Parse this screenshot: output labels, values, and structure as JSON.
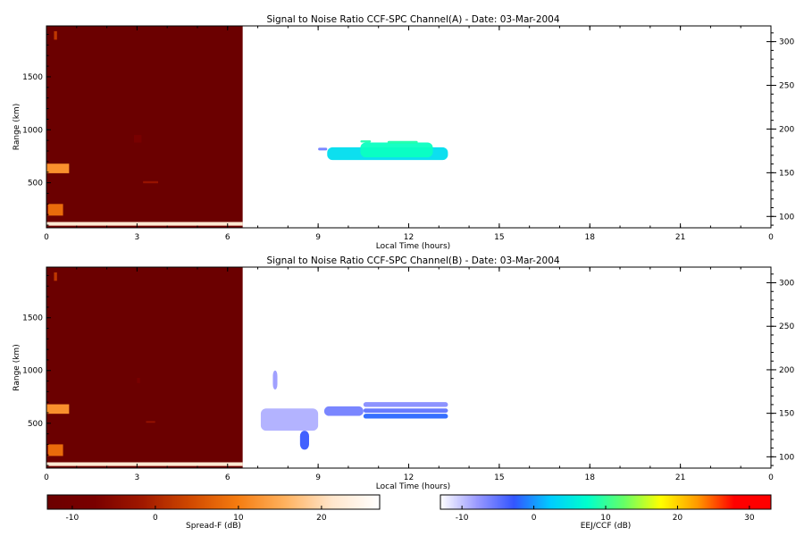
{
  "chart_data": [
    {
      "type": "heatmap",
      "title": "Signal to Noise Ratio CCF-SPC Channel(A) - Date: 03-Mar-2004",
      "xlabel": "Local Time (hours)",
      "ylabel": "Range (km)",
      "xlim": [
        0,
        24
      ],
      "ylim": [
        75,
        1980
      ],
      "xticks": [
        "0",
        "3",
        "6",
        "9",
        "12",
        "15",
        "18",
        "21",
        "0"
      ],
      "yticks": [
        500,
        1000,
        1500
      ],
      "y2lim": [
        87,
        318
      ],
      "y2ticks": [
        100,
        150,
        200,
        250,
        300
      ],
      "spreadf_block": {
        "x": [
          0,
          6.5
        ],
        "y": [
          75,
          1980
        ],
        "dB": -13
      },
      "spreadf_features": [
        {
          "x": [
            0.0,
            6.5
          ],
          "y": [
            95,
            130
          ],
          "dB": 22
        },
        {
          "x": [
            0.0,
            0.75
          ],
          "y": [
            590,
            680
          ],
          "dB": 12
        },
        {
          "x": [
            0.05,
            0.55
          ],
          "y": [
            190,
            300
          ],
          "dB": 8
        },
        {
          "x": [
            0.25,
            0.35
          ],
          "y": [
            1850,
            1930
          ],
          "dB": 2
        },
        {
          "x": [
            3.2,
            3.7
          ],
          "y": [
            495,
            515
          ],
          "dB": -3
        },
        {
          "x": [
            2.9,
            3.15
          ],
          "y": [
            880,
            950
          ],
          "dB": -8
        }
      ],
      "eej_blobs": [
        {
          "x": [
            9.3,
            13.3
          ],
          "y": [
            715,
            835
          ],
          "dB": 4
        },
        {
          "x": [
            10.4,
            12.8
          ],
          "y": [
            740,
            880
          ],
          "dB": 8
        },
        {
          "x": [
            9.0,
            9.3
          ],
          "y": [
            805,
            830
          ],
          "dB": -6
        },
        {
          "x": [
            10.4,
            10.75
          ],
          "y": [
            880,
            900
          ],
          "dB": 9
        },
        {
          "x": [
            11.3,
            12.3
          ],
          "y": [
            870,
            895
          ],
          "dB": 9
        }
      ]
    },
    {
      "type": "heatmap",
      "title": "Signal to Noise Ratio CCF-SPC Channel(B) - Date: 03-Mar-2004",
      "xlabel": "Local Time (hours)",
      "ylabel": "Range (km)",
      "xlim": [
        0,
        24
      ],
      "ylim": [
        75,
        1980
      ],
      "xticks": [
        "0",
        "3",
        "6",
        "9",
        "12",
        "15",
        "18",
        "21",
        "0"
      ],
      "yticks": [
        500,
        1000,
        1500
      ],
      "y2lim": [
        87,
        318
      ],
      "y2ticks": [
        100,
        150,
        200,
        250,
        300
      ],
      "spreadf_block": {
        "x": [
          0,
          6.5
        ],
        "y": [
          75,
          1980
        ],
        "dB": -13
      },
      "spreadf_features": [
        {
          "x": [
            0.0,
            6.5
          ],
          "y": [
            95,
            130
          ],
          "dB": 22
        },
        {
          "x": [
            0.0,
            0.75
          ],
          "y": [
            590,
            680
          ],
          "dB": 12
        },
        {
          "x": [
            0.05,
            0.55
          ],
          "y": [
            190,
            300
          ],
          "dB": 8
        },
        {
          "x": [
            0.25,
            0.35
          ],
          "y": [
            1850,
            1930
          ],
          "dB": 2
        },
        {
          "x": [
            3.3,
            3.6
          ],
          "y": [
            505,
            520
          ],
          "dB": -3
        },
        {
          "x": [
            3.0,
            3.1
          ],
          "y": [
            880,
            930
          ],
          "dB": -8
        }
      ],
      "eej_blobs": [
        {
          "x": [
            10.5,
            13.3
          ],
          "y": [
            545,
            590
          ],
          "dB": -2
        },
        {
          "x": [
            10.5,
            13.3
          ],
          "y": [
            600,
            640
          ],
          "dB": -5
        },
        {
          "x": [
            10.5,
            13.3
          ],
          "y": [
            655,
            700
          ],
          "dB": -7
        },
        {
          "x": [
            9.2,
            10.5
          ],
          "y": [
            570,
            660
          ],
          "dB": -6
        },
        {
          "x": [
            8.4,
            8.7
          ],
          "y": [
            250,
            430
          ],
          "dB": -3
        },
        {
          "x": [
            7.5,
            7.65
          ],
          "y": [
            820,
            1000
          ],
          "dB": -8
        },
        {
          "x": [
            7.1,
            9.0
          ],
          "y": [
            430,
            640
          ],
          "dB": -9
        }
      ]
    }
  ],
  "colorbars": [
    {
      "label": "Spread-F (dB)",
      "range": [
        -13,
        27
      ],
      "ticks": [
        -10,
        0,
        10,
        20
      ],
      "stops": [
        "#6b0000",
        "#7a0000",
        "#a01800",
        "#d04800",
        "#f57c10",
        "#ffb15e",
        "#ffe6cc",
        "#ffffff"
      ]
    },
    {
      "label": "EEJ/CCF (dB)",
      "range": [
        -13,
        33
      ],
      "ticks": [
        -10,
        0,
        10,
        20,
        30
      ],
      "stops": [
        "#ffffff",
        "#9999ff",
        "#3355ff",
        "#00ccff",
        "#00ffcc",
        "#66ff66",
        "#ffff00",
        "#ff9900",
        "#ff0000",
        "#ff0000"
      ]
    }
  ]
}
